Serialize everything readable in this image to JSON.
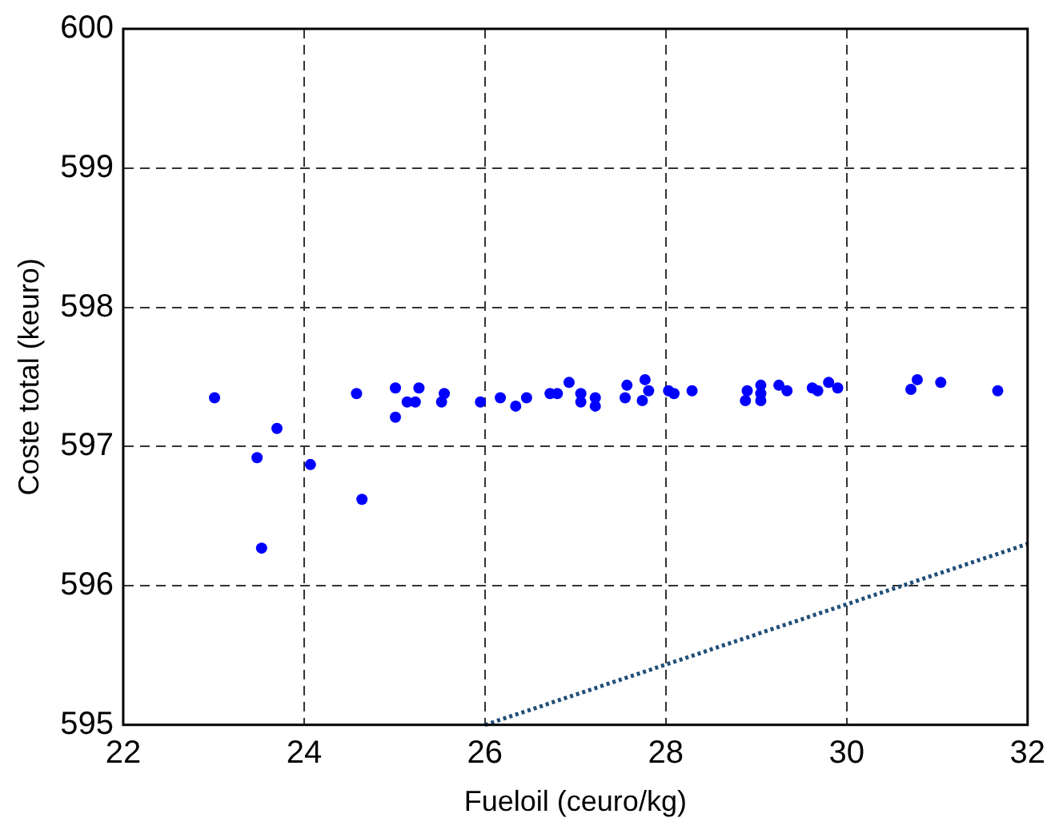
{
  "chart_data": {
    "type": "scatter",
    "xlabel": "Fueloil (ceuro/kg)",
    "ylabel": "Coste total (keuro)",
    "xlim": [
      22,
      32
    ],
    "ylim": [
      595,
      600
    ],
    "xticks": [
      22,
      24,
      26,
      28,
      30,
      32
    ],
    "yticks": [
      595,
      596,
      597,
      598,
      599,
      600
    ],
    "grid": true,
    "marker": "circle",
    "series": [
      {
        "color": "#0000ff",
        "x": [
          23.01,
          23.48,
          23.53,
          23.7,
          24.07,
          24.64,
          24.58,
          25.01,
          25.01,
          25.14,
          25.23,
          25.27,
          25.55,
          25.52,
          25.95,
          26.17,
          26.34,
          26.46,
          26.72,
          26.8,
          26.93,
          27.06,
          27.06,
          27.22,
          27.22,
          27.57,
          27.55,
          27.77,
          27.81,
          27.74,
          28.03,
          28.09,
          28.29,
          28.9,
          28.88,
          29.05,
          29.05,
          29.05,
          29.25,
          29.34,
          29.62,
          29.68,
          29.8,
          29.9,
          30.71,
          30.78,
          31.04,
          31.67
        ],
        "values": [
          597.35,
          596.92,
          596.27,
          597.13,
          596.87,
          596.62,
          597.38,
          597.42,
          597.21,
          597.32,
          597.32,
          597.42,
          597.38,
          597.32,
          597.32,
          597.35,
          597.29,
          597.35,
          597.38,
          597.38,
          597.46,
          597.38,
          597.32,
          597.35,
          597.29,
          597.44,
          597.35,
          597.48,
          597.4,
          597.33,
          597.4,
          597.38,
          597.4,
          597.4,
          597.33,
          597.44,
          597.38,
          597.33,
          597.44,
          597.4,
          597.42,
          597.4,
          597.46,
          597.42,
          597.41,
          597.48,
          597.46,
          597.4
        ]
      },
      {
        "type": "line",
        "color": "#1f4e79",
        "line_style": "dotted",
        "marker": "none",
        "x": [
          26,
          32
        ],
        "values": [
          595,
          596.3
        ]
      }
    ]
  }
}
